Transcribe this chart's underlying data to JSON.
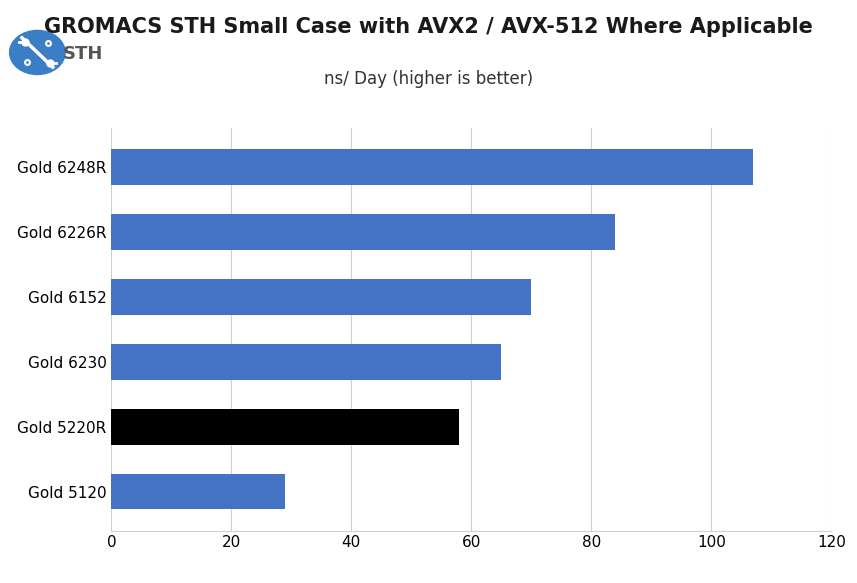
{
  "title": "GROMACS STH Small Case with AVX2 / AVX-512 Where Applicable",
  "subtitle": "ns/ Day (higher is better)",
  "categories": [
    "Gold 6248R",
    "Gold 6226R",
    "Gold 6152",
    "Gold 6230",
    "Gold 5220R",
    "Gold 5120"
  ],
  "values": [
    107.0,
    84.0,
    70.0,
    65.0,
    58.0,
    29.0
  ],
  "bar_colors": [
    "#4472C4",
    "#4472C4",
    "#4472C4",
    "#4472C4",
    "#000000",
    "#4472C4"
  ],
  "xlim": [
    0,
    120
  ],
  "xticks": [
    0,
    20,
    40,
    60,
    80,
    100,
    120
  ],
  "background_color": "#ffffff",
  "grid_color": "#d0d0d0",
  "title_fontsize": 15,
  "subtitle_fontsize": 12,
  "tick_fontsize": 11,
  "bar_height": 0.55
}
